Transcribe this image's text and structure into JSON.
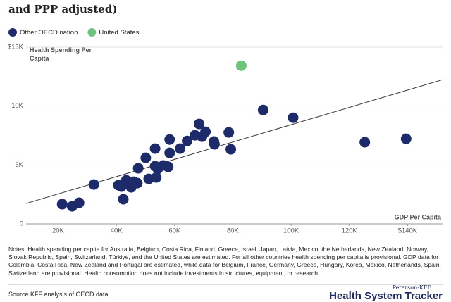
{
  "chart_data": {
    "type": "scatter",
    "title": "and PPP adjusted)",
    "y_label": "Health Spending Per Capita",
    "x_label": "GDP Per Capita",
    "xlim": [
      9000,
      152000
    ],
    "ylim": [
      0,
      15000
    ],
    "xticks": [
      {
        "value": 20000,
        "label": "20K"
      },
      {
        "value": 40000,
        "label": "40K"
      },
      {
        "value": 60000,
        "label": "60K"
      },
      {
        "value": 80000,
        "label": "80K"
      },
      {
        "value": 100000,
        "label": "100K"
      },
      {
        "value": 120000,
        "label": "120K"
      },
      {
        "value": 140000,
        "label": "$140K"
      }
    ],
    "yticks": [
      0,
      {
        "value": 5000,
        "label": "5K"
      },
      {
        "value": 10000,
        "label": "10K"
      },
      {
        "value": 15000,
        "label": "$15K"
      }
    ],
    "grid": true,
    "trendline": {
      "x": [
        9000,
        152000
      ],
      "y": [
        1730,
        12240
      ],
      "color": "#333333"
    },
    "series": [
      {
        "name": "Other OECD nation",
        "color": "#1d2b6b",
        "x": [
          21400,
          24800,
          27200,
          32300,
          40700,
          41700,
          42400,
          43400,
          45100,
          46000,
          47200,
          47500,
          50100,
          51100,
          53300,
          53300,
          54200,
          53700,
          56100,
          57800,
          58300,
          58300,
          61900,
          64300,
          67000,
          68400,
          69400,
          70600,
          73500,
          73700,
          78600,
          79300,
          90400,
          100700,
          125300,
          139500
        ],
        "values": [
          1670,
          1490,
          1790,
          3340,
          3280,
          3160,
          2090,
          3700,
          3100,
          3580,
          3460,
          4720,
          5610,
          3820,
          6390,
          4900,
          4660,
          3940,
          4960,
          4840,
          7160,
          6030,
          6390,
          7040,
          7520,
          8480,
          7400,
          7820,
          6990,
          6750,
          7760,
          6330,
          9670,
          9010,
          6930,
          7220
        ]
      },
      {
        "name": "United States",
        "color": "#6cc47c",
        "x": [
          82900
        ],
        "values": [
          13430
        ]
      }
    ]
  },
  "notes": "Notes: Health spending per capita for Australia, Belgium, Costa Rica, Finland, Greece, Israel, Japan, Latvia, Mexico, the Netherlands, New Zealand, Norway, Slovak Republic, Spain, Switzerland, Türkiye, and the United States are estimated. For all other countries health spending per capita is provisional. GDP data for Colombia, Costa Rica, New Zealand and Portugal are estimated, while data for Belgium, France, Germany, Greece, Hungary, Korea, Mexico, Netherlands, Spain, Switzerland are provisional. Health consumption does not include investments in structures, equipment, or research.",
  "source": "Source KFF analysis of OECD data",
  "logo": {
    "top": "Peterson-KFF",
    "main": "Health System Tracker"
  }
}
